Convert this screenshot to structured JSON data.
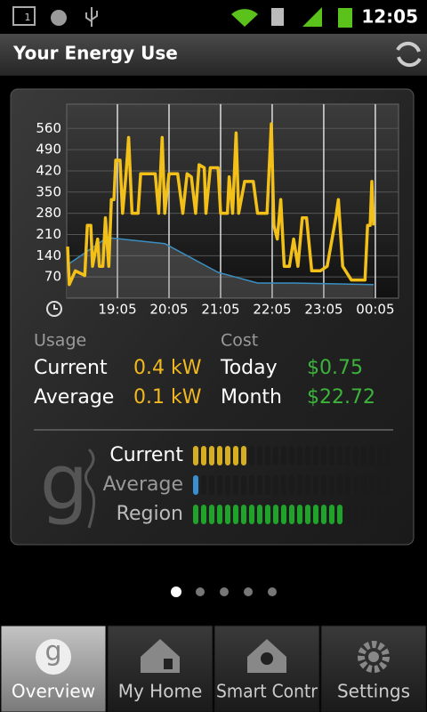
{
  "status_bar": {
    "notification": "1",
    "time": "12:05"
  },
  "header": {
    "title": "Your Energy Use"
  },
  "chart": {
    "type": "line",
    "xlim": [
      1086,
      1472
    ],
    "ylim": [
      0,
      640
    ],
    "xticks": [
      {
        "value": 1145,
        "label": "19:05"
      },
      {
        "value": 1205,
        "label": "20:05"
      },
      {
        "value": 1265,
        "label": "21:05"
      },
      {
        "value": 1325,
        "label": "22:05"
      },
      {
        "value": 1385,
        "label": "23:05"
      },
      {
        "value": 1445,
        "label": "00:05"
      }
    ],
    "yticks": [
      70,
      140,
      210,
      280,
      350,
      420,
      490,
      560
    ],
    "grid": true,
    "series": [
      {
        "color": "#f2c018",
        "x": [
          1087,
          1089,
          1096,
          1107,
          1110,
          1114,
          1116,
          1122,
          1124,
          1128,
          1131,
          1135,
          1138,
          1141,
          1143,
          1148,
          1151,
          1155,
          1158,
          1162,
          1169,
          1172,
          1189,
          1193,
          1197,
          1200,
          1205,
          1215,
          1221,
          1226,
          1231,
          1236,
          1240,
          1246,
          1248,
          1253,
          1262,
          1265,
          1273,
          1275,
          1279,
          1283,
          1286,
          1293,
          1303,
          1308,
          1319,
          1324,
          1327,
          1331,
          1335,
          1339,
          1345,
          1350,
          1355,
          1360,
          1365,
          1371,
          1381,
          1389,
          1399,
          1402,
          1407,
          1417,
          1422,
          1433,
          1436,
          1439,
          1441,
          1443
        ],
        "values": [
          170,
          45,
          90,
          75,
          240,
          240,
          105,
          195,
          105,
          105,
          265,
          105,
          325,
          325,
          455,
          455,
          280,
          410,
          530,
          280,
          280,
          410,
          410,
          280,
          530,
          280,
          410,
          410,
          280,
          410,
          400,
          280,
          440,
          430,
          280,
          430,
          430,
          280,
          280,
          400,
          280,
          545,
          280,
          385,
          385,
          280,
          280,
          575,
          240,
          195,
          325,
          105,
          105,
          195,
          105,
          265,
          265,
          90,
          90,
          105,
          265,
          325,
          105,
          60,
          60,
          60,
          240,
          240,
          385,
          240
        ]
      },
      {
        "color": "#3a8fc0",
        "area": true,
        "x": [
          1087,
          1133,
          1200,
          1262,
          1308,
          1350,
          1443
        ],
        "values": [
          110,
          200,
          180,
          85,
          50,
          50,
          45
        ]
      }
    ]
  },
  "stats": {
    "usage_heading": "Usage",
    "cost_heading": "Cost",
    "rows": [
      {
        "label": "Current",
        "usage": "0.4 kW",
        "cost_label": "Today",
        "cost": "$0.75"
      },
      {
        "label": "Average",
        "usage": "0.1 kW",
        "cost_label": "Month",
        "cost": "$22.72"
      }
    ]
  },
  "logo": "g",
  "meters": [
    {
      "label": "Current",
      "level": 7,
      "color": "#d6ae22"
    },
    {
      "label": "Average",
      "level": 1,
      "color": "#3a8fd0"
    },
    {
      "label": "Region",
      "level": 19,
      "color": "#1fa32a"
    }
  ],
  "pager": {
    "pages": 5,
    "current": 0
  },
  "tabs": [
    {
      "label": "Overview",
      "selected": true
    },
    {
      "label": "My Home",
      "selected": false
    },
    {
      "label": "Smart Contr",
      "selected": false
    },
    {
      "label": "Settings",
      "selected": false
    }
  ]
}
